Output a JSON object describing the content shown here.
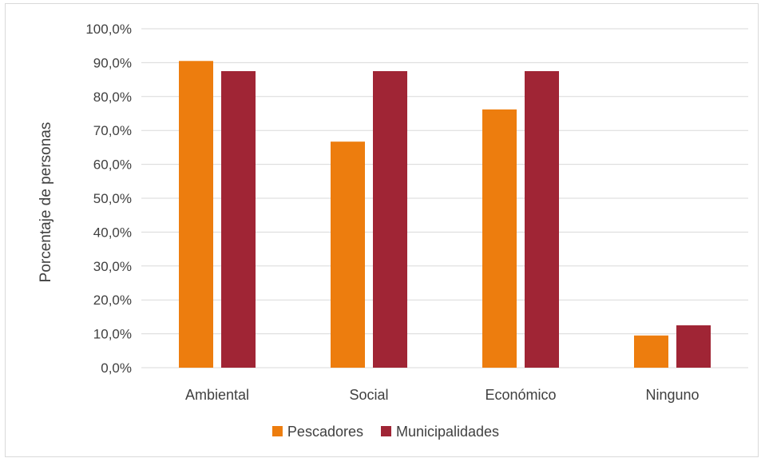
{
  "chart_data": {
    "type": "bar",
    "title": "",
    "xlabel": "",
    "ylabel": "Porcentaje de personas",
    "ylim": [
      0,
      100
    ],
    "yticks": [
      "0,0%",
      "10,0%",
      "20,0%",
      "30,0%",
      "40,0%",
      "50,0%",
      "60,0%",
      "70,0%",
      "80,0%",
      "90,0%",
      "100,0%"
    ],
    "categories": [
      "Ambiental",
      "Social",
      "Económico",
      "Ninguno"
    ],
    "series": [
      {
        "name": "Pescadores",
        "color": "#ED7D0E",
        "values": [
          90.5,
          66.7,
          76.2,
          9.5
        ]
      },
      {
        "name": "Municipalidades",
        "color": "#A02535",
        "values": [
          87.5,
          87.5,
          87.5,
          12.5
        ]
      }
    ],
    "grid": true,
    "legend": "bottom"
  }
}
